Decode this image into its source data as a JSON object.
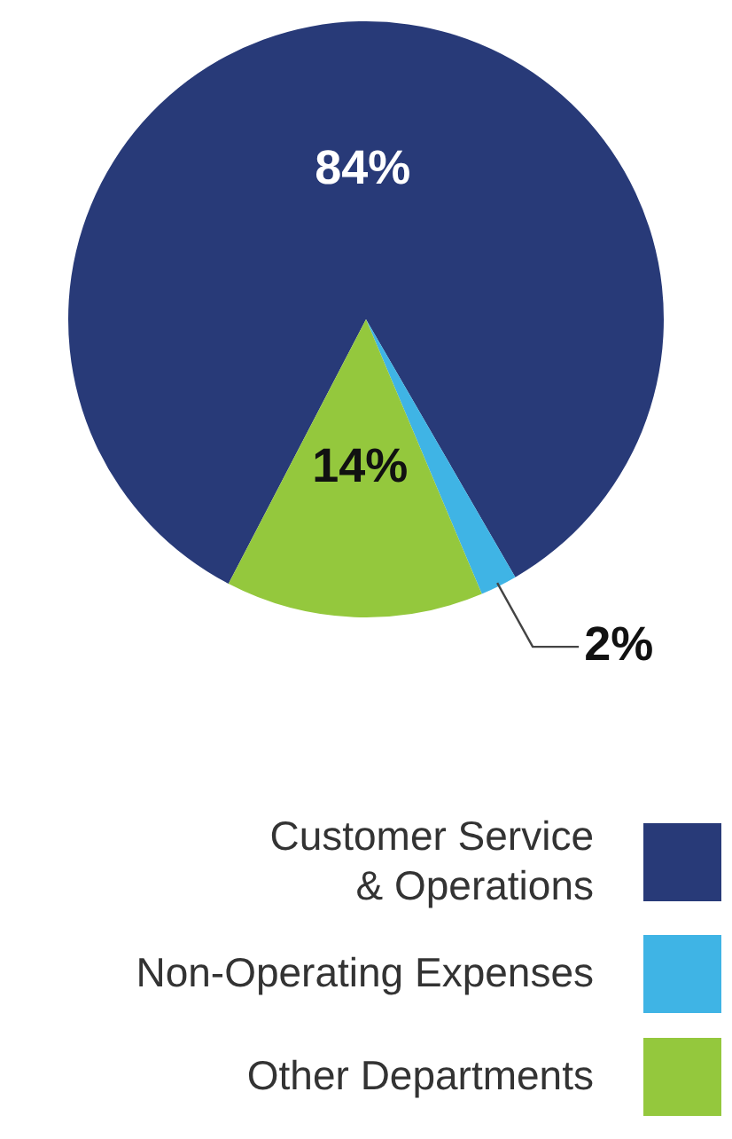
{
  "chart_data": {
    "type": "pie",
    "categories": [
      "Customer Service\n& Operations",
      "Non-Operating Expenses",
      "Other Departments"
    ],
    "values": [
      84,
      2,
      14
    ],
    "colors": [
      "#283a78",
      "#3fb4e5",
      "#94c83d"
    ],
    "value_labels": [
      "84%",
      "2%",
      "14%"
    ],
    "legend": "bottom"
  }
}
